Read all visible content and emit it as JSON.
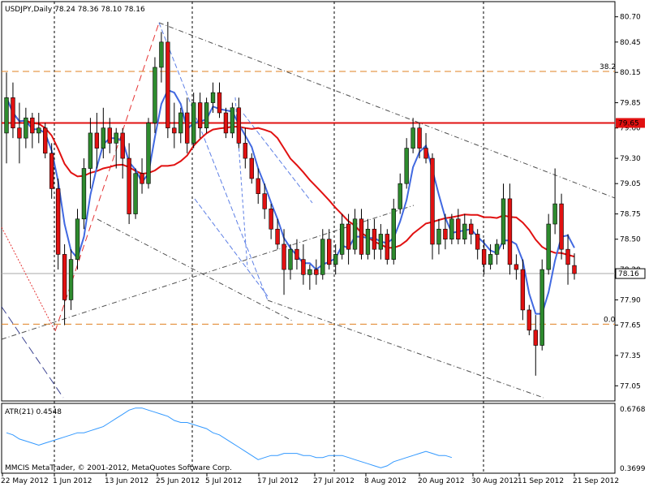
{
  "header": {
    "symbol_line": "USDJPY,Daily  78.24 78.36 78.10 78.16"
  },
  "footer": {
    "copyright": "MMCIS MetaTrader, © 2001-2012, MetaQuotes Software Corp."
  },
  "fib": {
    "top_label": "38.2",
    "bottom_label": "0.0",
    "top_level": 80.16,
    "bottom_level": 77.66
  },
  "resistance": {
    "level": 79.65,
    "label": "79.65"
  },
  "current_price": {
    "value": 78.16,
    "label": "78.16"
  },
  "atr": {
    "title": "ATR(21) 0.4548",
    "max_label": "0.6768",
    "min_label": "0.3699",
    "ymin": 0.3699,
    "ymax": 0.6768,
    "values": [
      0.55,
      0.54,
      0.52,
      0.51,
      0.5,
      0.49,
      0.5,
      0.51,
      0.52,
      0.53,
      0.54,
      0.55,
      0.55,
      0.56,
      0.57,
      0.58,
      0.6,
      0.62,
      0.64,
      0.66,
      0.67,
      0.67,
      0.66,
      0.65,
      0.64,
      0.63,
      0.61,
      0.6,
      0.6,
      0.59,
      0.58,
      0.57,
      0.55,
      0.54,
      0.52,
      0.5,
      0.48,
      0.46,
      0.44,
      0.42,
      0.43,
      0.44,
      0.44,
      0.45,
      0.45,
      0.45,
      0.44,
      0.44,
      0.43,
      0.43,
      0.44,
      0.44,
      0.44,
      0.43,
      0.42,
      0.41,
      0.4,
      0.39,
      0.38,
      0.39,
      0.41,
      0.42,
      0.43,
      0.44,
      0.45,
      0.46,
      0.45,
      0.44,
      0.44,
      0.43
    ]
  },
  "colors": {
    "bull": "#2e8b2e",
    "bear": "#e11111",
    "ma_red": "#e11111",
    "ma_blue": "#4169e1",
    "atr_line": "#3399ff",
    "fib": "#e08020",
    "grid_dash": "#000000"
  },
  "chart_data": {
    "type": "candlestick",
    "title": "USDJPY,Daily",
    "ylim": [
      76.9,
      80.85
    ],
    "y_ticks": [
      "80.70",
      "80.45",
      "80.15",
      "79.85",
      "79.60",
      "79.30",
      "79.05",
      "78.75",
      "78.50",
      "78.20",
      "77.90",
      "77.65",
      "77.35",
      "77.05"
    ],
    "x_ticks": [
      "22 May 2012",
      "1 Jun 2012",
      "13 Jun 2012",
      "25 Jun 2012",
      "5 Jul 2012",
      "17 Jul 2012",
      "27 Jul 2012",
      "8 Aug 2012",
      "20 Aug 2012",
      "30 Aug 2012",
      "11 Sep 2012",
      "21 Sep 2012"
    ],
    "candles": [
      {
        "d": "May 21",
        "o": 79.55,
        "h": 80.15,
        "l": 79.25,
        "c": 79.9
      },
      {
        "d": "May 22",
        "o": 79.9,
        "h": 80.05,
        "l": 79.5,
        "c": 79.6
      },
      {
        "d": "May 23",
        "o": 79.6,
        "h": 79.85,
        "l": 79.25,
        "c": 79.5
      },
      {
        "d": "May 24",
        "o": 79.5,
        "h": 79.8,
        "l": 79.4,
        "c": 79.7
      },
      {
        "d": "May 25",
        "o": 79.7,
        "h": 79.75,
        "l": 79.4,
        "c": 79.55
      },
      {
        "d": "May 28",
        "o": 79.55,
        "h": 79.75,
        "l": 79.45,
        "c": 79.6
      },
      {
        "d": "May 29",
        "o": 79.6,
        "h": 79.65,
        "l": 79.3,
        "c": 79.35
      },
      {
        "d": "May 30",
        "o": 79.35,
        "h": 79.45,
        "l": 78.9,
        "c": 79.0
      },
      {
        "d": "May 31",
        "o": 79.0,
        "h": 79.1,
        "l": 78.2,
        "c": 78.35
      },
      {
        "d": "Jun 1",
        "o": 78.35,
        "h": 78.45,
        "l": 77.65,
        "c": 77.9
      },
      {
        "d": "Jun 4",
        "o": 77.9,
        "h": 78.4,
        "l": 77.8,
        "c": 78.3
      },
      {
        "d": "Jun 5",
        "o": 78.3,
        "h": 78.8,
        "l": 78.2,
        "c": 78.7
      },
      {
        "d": "Jun 6",
        "o": 78.7,
        "h": 79.3,
        "l": 78.6,
        "c": 79.2
      },
      {
        "d": "Jun 7",
        "o": 79.2,
        "h": 79.7,
        "l": 79.0,
        "c": 79.55
      },
      {
        "d": "Jun 8",
        "o": 79.55,
        "h": 79.75,
        "l": 79.2,
        "c": 79.4
      },
      {
        "d": "Jun 11",
        "o": 79.4,
        "h": 79.8,
        "l": 79.3,
        "c": 79.6
      },
      {
        "d": "Jun 12",
        "o": 79.6,
        "h": 79.7,
        "l": 79.35,
        "c": 79.45
      },
      {
        "d": "Jun 13",
        "o": 79.45,
        "h": 79.6,
        "l": 79.2,
        "c": 79.55
      },
      {
        "d": "Jun 14",
        "o": 79.55,
        "h": 79.6,
        "l": 79.1,
        "c": 79.3
      },
      {
        "d": "Jun 15",
        "o": 79.3,
        "h": 79.45,
        "l": 78.65,
        "c": 78.75
      },
      {
        "d": "Jun 18",
        "o": 78.75,
        "h": 79.2,
        "l": 78.7,
        "c": 79.15
      },
      {
        "d": "Jun 19",
        "o": 79.15,
        "h": 79.3,
        "l": 78.95,
        "c": 79.05
      },
      {
        "d": "Jun 20",
        "o": 79.05,
        "h": 79.7,
        "l": 79.0,
        "c": 79.65
      },
      {
        "d": "Jun 21",
        "o": 79.65,
        "h": 80.3,
        "l": 79.55,
        "c": 80.2
      },
      {
        "d": "Jun 22",
        "o": 80.2,
        "h": 80.55,
        "l": 80.05,
        "c": 80.45
      },
      {
        "d": "Jun 25",
        "o": 80.45,
        "h": 80.65,
        "l": 79.5,
        "c": 79.6
      },
      {
        "d": "Jun 26",
        "o": 79.6,
        "h": 79.85,
        "l": 79.4,
        "c": 79.55
      },
      {
        "d": "Jun 27",
        "o": 79.55,
        "h": 79.8,
        "l": 79.45,
        "c": 79.75
      },
      {
        "d": "Jun 28",
        "o": 79.75,
        "h": 79.9,
        "l": 79.35,
        "c": 79.45
      },
      {
        "d": "Jun 29",
        "o": 79.45,
        "h": 79.95,
        "l": 79.4,
        "c": 79.85
      },
      {
        "d": "Jul 2",
        "o": 79.85,
        "h": 79.95,
        "l": 79.5,
        "c": 79.6
      },
      {
        "d": "Jul 3",
        "o": 79.6,
        "h": 79.9,
        "l": 79.55,
        "c": 79.85
      },
      {
        "d": "Jul 4",
        "o": 79.85,
        "h": 80.05,
        "l": 79.75,
        "c": 79.95
      },
      {
        "d": "Jul 5",
        "o": 79.95,
        "h": 80.05,
        "l": 79.7,
        "c": 79.75
      },
      {
        "d": "Jul 6",
        "o": 79.75,
        "h": 79.8,
        "l": 79.5,
        "c": 79.55
      },
      {
        "d": "Jul 9",
        "o": 79.55,
        "h": 79.85,
        "l": 79.5,
        "c": 79.8
      },
      {
        "d": "Jul 10",
        "o": 79.8,
        "h": 79.9,
        "l": 79.4,
        "c": 79.45
      },
      {
        "d": "Jul 11",
        "o": 79.45,
        "h": 79.6,
        "l": 79.2,
        "c": 79.3
      },
      {
        "d": "Jul 12",
        "o": 79.3,
        "h": 79.35,
        "l": 79.05,
        "c": 79.1
      },
      {
        "d": "Jul 13",
        "o": 79.1,
        "h": 79.2,
        "l": 78.85,
        "c": 78.95
      },
      {
        "d": "Jul 16",
        "o": 78.95,
        "h": 79.05,
        "l": 78.7,
        "c": 78.8
      },
      {
        "d": "Jul 17",
        "o": 78.8,
        "h": 78.85,
        "l": 78.5,
        "c": 78.6
      },
      {
        "d": "Jul 18",
        "o": 78.6,
        "h": 78.7,
        "l": 78.4,
        "c": 78.45
      },
      {
        "d": "Jul 19",
        "o": 78.45,
        "h": 78.6,
        "l": 77.95,
        "c": 78.2
      },
      {
        "d": "Jul 20",
        "o": 78.2,
        "h": 78.45,
        "l": 78.1,
        "c": 78.4
      },
      {
        "d": "Jul 23",
        "o": 78.4,
        "h": 78.5,
        "l": 78.2,
        "c": 78.3
      },
      {
        "d": "Jul 24",
        "o": 78.3,
        "h": 78.45,
        "l": 78.05,
        "c": 78.15
      },
      {
        "d": "Jul 25",
        "o": 78.15,
        "h": 78.25,
        "l": 78.0,
        "c": 78.2
      },
      {
        "d": "Jul 26",
        "o": 78.2,
        "h": 78.3,
        "l": 78.05,
        "c": 78.15
      },
      {
        "d": "Jul 27",
        "o": 78.15,
        "h": 78.6,
        "l": 78.1,
        "c": 78.5
      },
      {
        "d": "Jul 30",
        "o": 78.5,
        "h": 78.6,
        "l": 78.2,
        "c": 78.25
      },
      {
        "d": "Jul 31",
        "o": 78.25,
        "h": 78.45,
        "l": 78.15,
        "c": 78.35
      },
      {
        "d": "Aug 1",
        "o": 78.35,
        "h": 78.75,
        "l": 78.3,
        "c": 78.65
      },
      {
        "d": "Aug 2",
        "o": 78.65,
        "h": 78.75,
        "l": 78.25,
        "c": 78.4
      },
      {
        "d": "Aug 3",
        "o": 78.4,
        "h": 78.8,
        "l": 78.35,
        "c": 78.7
      },
      {
        "d": "Aug 6",
        "o": 78.7,
        "h": 78.8,
        "l": 78.3,
        "c": 78.35
      },
      {
        "d": "Aug 7",
        "o": 78.35,
        "h": 78.7,
        "l": 78.3,
        "c": 78.6
      },
      {
        "d": "Aug 8",
        "o": 78.6,
        "h": 78.7,
        "l": 78.3,
        "c": 78.4
      },
      {
        "d": "Aug 9",
        "o": 78.4,
        "h": 78.65,
        "l": 78.3,
        "c": 78.55
      },
      {
        "d": "Aug 10",
        "o": 78.55,
        "h": 78.6,
        "l": 78.25,
        "c": 78.3
      },
      {
        "d": "Aug 13",
        "o": 78.3,
        "h": 78.9,
        "l": 78.25,
        "c": 78.8
      },
      {
        "d": "Aug 14",
        "o": 78.8,
        "h": 79.15,
        "l": 78.75,
        "c": 79.05
      },
      {
        "d": "Aug 15",
        "o": 79.05,
        "h": 79.5,
        "l": 79.0,
        "c": 79.4
      },
      {
        "d": "Aug 16",
        "o": 79.4,
        "h": 79.7,
        "l": 79.35,
        "c": 79.6
      },
      {
        "d": "Aug 17",
        "o": 79.6,
        "h": 79.65,
        "l": 79.3,
        "c": 79.4
      },
      {
        "d": "Aug 20",
        "o": 79.4,
        "h": 79.55,
        "l": 79.25,
        "c": 79.3
      },
      {
        "d": "Aug 21",
        "o": 79.3,
        "h": 79.35,
        "l": 78.3,
        "c": 78.45
      },
      {
        "d": "Aug 22",
        "o": 78.45,
        "h": 78.7,
        "l": 78.35,
        "c": 78.6
      },
      {
        "d": "Aug 23",
        "o": 78.6,
        "h": 78.75,
        "l": 78.4,
        "c": 78.5
      },
      {
        "d": "Aug 24",
        "o": 78.5,
        "h": 78.75,
        "l": 78.45,
        "c": 78.7
      },
      {
        "d": "Aug 27",
        "o": 78.7,
        "h": 78.8,
        "l": 78.45,
        "c": 78.5
      },
      {
        "d": "Aug 28",
        "o": 78.5,
        "h": 78.75,
        "l": 78.45,
        "c": 78.65
      },
      {
        "d": "Aug 29",
        "o": 78.65,
        "h": 78.7,
        "l": 78.45,
        "c": 78.55
      },
      {
        "d": "Aug 30",
        "o": 78.55,
        "h": 78.6,
        "l": 78.3,
        "c": 78.4
      },
      {
        "d": "Aug 31",
        "o": 78.4,
        "h": 78.5,
        "l": 78.15,
        "c": 78.25
      },
      {
        "d": "Sep 3",
        "o": 78.25,
        "h": 78.45,
        "l": 78.2,
        "c": 78.35
      },
      {
        "d": "Sep 4",
        "o": 78.35,
        "h": 78.5,
        "l": 78.25,
        "c": 78.45
      },
      {
        "d": "Sep 5",
        "o": 78.45,
        "h": 79.05,
        "l": 78.4,
        "c": 78.9
      },
      {
        "d": "Sep 6",
        "o": 78.9,
        "h": 79.05,
        "l": 78.15,
        "c": 78.25
      },
      {
        "d": "Sep 7",
        "o": 78.25,
        "h": 78.35,
        "l": 78.1,
        "c": 78.2
      },
      {
        "d": "Sep 10",
        "o": 78.2,
        "h": 78.3,
        "l": 77.7,
        "c": 77.8
      },
      {
        "d": "Sep 11",
        "o": 77.8,
        "h": 77.85,
        "l": 77.55,
        "c": 77.6
      },
      {
        "d": "Sep 12",
        "o": 77.6,
        "h": 77.75,
        "l": 77.15,
        "c": 77.45
      },
      {
        "d": "Sep 13",
        "o": 77.45,
        "h": 78.3,
        "l": 77.4,
        "c": 78.2
      },
      {
        "d": "Sep 14",
        "o": 78.2,
        "h": 78.75,
        "l": 78.15,
        "c": 78.65
      },
      {
        "d": "Sep 17",
        "o": 78.65,
        "h": 79.2,
        "l": 78.55,
        "c": 78.85
      },
      {
        "d": "Sep 18",
        "o": 78.85,
        "h": 78.95,
        "l": 78.3,
        "c": 78.4
      },
      {
        "d": "Sep 19",
        "o": 78.4,
        "h": 78.55,
        "l": 78.05,
        "c": 78.25
      },
      {
        "d": "Sep 20",
        "o": 78.24,
        "h": 78.36,
        "l": 78.1,
        "c": 78.16
      }
    ]
  }
}
